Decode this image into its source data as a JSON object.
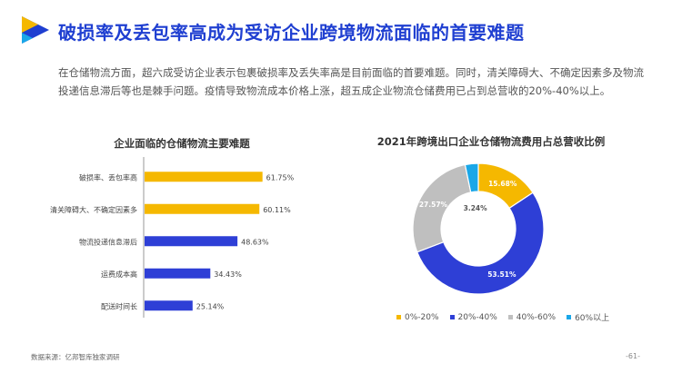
{
  "header": {
    "title": "破损率及丢包率高成为受访企业跨境物流面临的首要难题",
    "intro": "在仓储物流方面，超六成受访企业表示包裹破损率及丢失率高是目前面临的首要难题。同时，清关障碍大、不确定因素多及物流投递信息滞后等也是棘手问题。疫情导致物流成本价格上涨，超五成企业物流仓储费用已占到总营收的20%-40%以上。"
  },
  "footer": {
    "source": "数据来源：亿邦智库独家调研",
    "page_number": "-61-"
  },
  "colors": {
    "title": "#1f3fd1",
    "yellow": "#f5b800",
    "blue": "#2e3fd6",
    "gray": "#bfbfbf",
    "cyan": "#1aa7e8"
  },
  "chart_data": [
    {
      "type": "bar",
      "orientation": "horizontal",
      "title": "企业面临的仓储物流主要难题",
      "categories": [
        "破损率、丢包率高",
        "清关障碍大、不确定因素多",
        "物流投递信息滞后",
        "运费成本高",
        "配送时间长"
      ],
      "values": [
        61.75,
        60.11,
        48.63,
        34.43,
        25.14
      ],
      "value_labels": [
        "61.75%",
        "60.11%",
        "48.63%",
        "34.43%",
        "25.14%"
      ],
      "bar_colors": [
        "#f5b800",
        "#f5b800",
        "#2e3fd6",
        "#2e3fd6",
        "#2e3fd6"
      ],
      "xlim": [
        0,
        100
      ]
    },
    {
      "type": "pie",
      "subtype": "donut",
      "title": "2021年跨境出口企业仓储物流费用占总营收比例",
      "labels": [
        "0%-20%",
        "20%-40%",
        "40%-60%",
        "60%以上"
      ],
      "values": [
        15.68,
        53.51,
        27.57,
        3.24
      ],
      "value_labels": [
        "15.68%",
        "53.51%",
        "27.57%",
        "3.24%"
      ],
      "colors": [
        "#f5b800",
        "#2e3fd6",
        "#bfbfbf",
        "#1aa7e8"
      ],
      "legend": "bottom"
    }
  ]
}
